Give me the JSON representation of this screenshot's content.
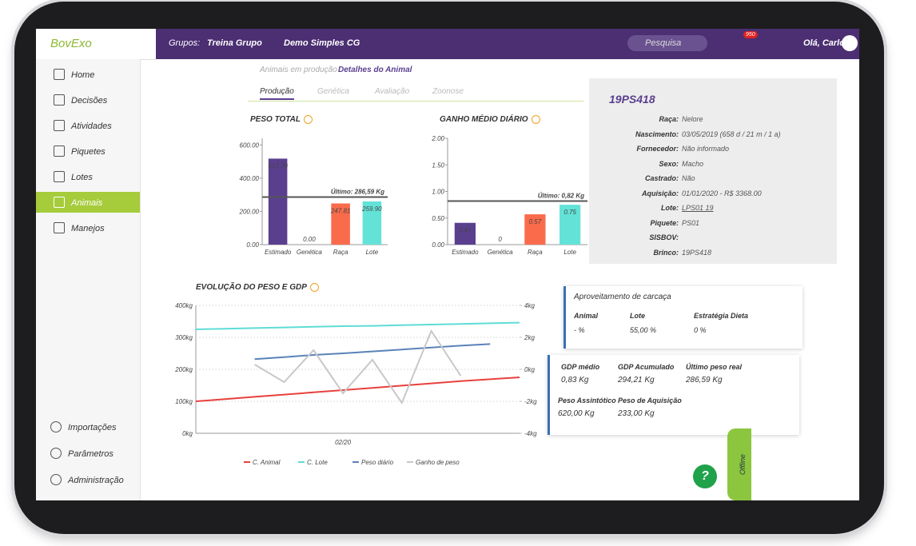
{
  "header": {
    "logo": "BovExo",
    "groups_label": "Grupos:",
    "group": "Treina Grupo",
    "farm": "Demo Simples CG",
    "search": "Pesquisa",
    "badge": "950",
    "greeting": "Olá, Carlos"
  },
  "sidebar": {
    "items": [
      "Home",
      "Decisões",
      "Atividades",
      "Piquetes",
      "Lotes",
      "Animais",
      "Manejos"
    ],
    "active": 5,
    "bottom": [
      "Importações",
      "Parâmetros",
      "Administração"
    ]
  },
  "breadcrumb": {
    "parent": "Animais em produção",
    "current": "Detalhes do Animal"
  },
  "tabs": {
    "items": [
      "Produção",
      "Genética",
      "Avaliação",
      "Zoonose"
    ],
    "active": 0
  },
  "chart_data": [
    {
      "type": "bar",
      "title": "PESO TOTAL",
      "categories": [
        "Estimado",
        "Genética",
        "Raça",
        "Lote"
      ],
      "values": [
        517.7,
        0,
        247.81,
        259.9
      ],
      "value_labels": [
        "517.70",
        "0.00",
        "247.81",
        "259.90"
      ],
      "colors": [
        "#5b3f8f",
        "#5b3f8f",
        "#fa6b4c",
        "#63e3d8"
      ],
      "ylim": [
        0,
        640
      ],
      "yticks": [
        {
          "value": 0,
          "label": "0.00"
        },
        {
          "value": 200,
          "label": "200.00"
        },
        {
          "value": 400,
          "label": "400.00"
        },
        {
          "value": 600,
          "label": "600.00"
        }
      ],
      "annotation": {
        "label": "Último: 286,59 Kg",
        "value": 286.59
      }
    },
    {
      "type": "bar",
      "title": "GANHO MÉDIO DIÁRIO",
      "categories": [
        "Estimado",
        "Genética",
        "Raça",
        "Lote"
      ],
      "values": [
        0.41,
        0,
        0.57,
        0.75
      ],
      "colors": [
        "#5b3f8f",
        "#5b3f8f",
        "#fa6b4c",
        "#63e3d8"
      ],
      "ylim": [
        0,
        2
      ],
      "yticks": [
        {
          "value": 0,
          "label": "0.00"
        },
        {
          "value": 0.5,
          "label": "0.50"
        },
        {
          "value": 1,
          "label": "1.00"
        },
        {
          "value": 1.5,
          "label": "1.50"
        },
        {
          "value": 2,
          "label": "2.00"
        }
      ],
      "annotation": {
        "label": "Último: 0,82 Kg",
        "value": 0.82
      }
    },
    {
      "type": "line",
      "title": "EVOLUÇÃO DO PESO E GDP",
      "categories": [
        null,
        null,
        null,
        null,
        null,
        "02/20",
        null,
        null,
        null,
        null,
        null,
        null
      ],
      "series": [
        {
          "name": "C. Animal",
          "color": "#e8413c",
          "values": [
            100,
            107,
            114,
            121,
            128,
            135,
            142,
            149,
            156,
            163,
            169,
            175
          ]
        },
        {
          "name": "C. Lote",
          "color": "#5fdcd6",
          "values": [
            325,
            327,
            329,
            331,
            333,
            335,
            336,
            338,
            340,
            342,
            344,
            346
          ]
        },
        {
          "name": "Peso diário",
          "color": "#5a82b8",
          "values": [
            null,
            null,
            232,
            238,
            245,
            250,
            256,
            262,
            268,
            274,
            279,
            null
          ]
        },
        {
          "name": "Ganho de peso",
          "color": "#c8c8c8",
          "axis": "y2",
          "values": [
            null,
            null,
            0.3,
            -0.8,
            1.2,
            -1.5,
            0.6,
            -2.1,
            2.4,
            -0.4,
            null,
            null
          ]
        }
      ],
      "ylim": [
        0,
        400
      ],
      "yticks": [
        {
          "value": 0,
          "label": "0kg"
        },
        {
          "value": 100,
          "label": "100kg"
        },
        {
          "value": 200,
          "label": "200kg"
        },
        {
          "value": 300,
          "label": "300kg"
        },
        {
          "value": 400,
          "label": "400kg"
        }
      ],
      "y2lim": [
        -4,
        4
      ],
      "y2ticks": [
        {
          "value": -4,
          "label": "-4kg"
        },
        {
          "value": -2,
          "label": "-2kg"
        },
        {
          "value": 0,
          "label": "0kg"
        },
        {
          "value": 2,
          "label": "2kg"
        },
        {
          "value": 4,
          "label": "4kg"
        }
      ]
    }
  ],
  "animal": {
    "id": "19PS418",
    "fields": [
      {
        "label": "Raça:",
        "value": "Nelore"
      },
      {
        "label": "Nascimento:",
        "value": "03/05/2019 (658 d / 21 m / 1 a)"
      },
      {
        "label": "Fornecedor:",
        "value": "Não informado"
      },
      {
        "label": "Sexo:",
        "value": "Macho"
      },
      {
        "label": "Castrado:",
        "value": "Não"
      },
      {
        "label": "Aquisição:",
        "value": "01/01/2020 - R$ 3368.00"
      },
      {
        "label": "Lote:",
        "value": "LPS01 19"
      },
      {
        "label": "Piquete:",
        "value": "PS01"
      },
      {
        "label": "SISBOV:"
      },
      {
        "label": "Brinco:",
        "value": "19PS418"
      }
    ]
  },
  "carcass": {
    "title": "Aproveitamento de carcaça",
    "items": [
      {
        "label": "Animal",
        "value": "- %"
      },
      {
        "label": "Lote",
        "value": "55,00 %"
      },
      {
        "label": "Estratégia Dieta",
        "value": "0 %"
      }
    ]
  },
  "gdp": {
    "items": [
      {
        "label": "GDP médio",
        "value": "0,83 Kg"
      },
      {
        "label": "GDP Acumulado",
        "value": "294,21 Kg"
      },
      {
        "label": "Último peso real",
        "value": "286,59 Kg"
      },
      {
        "label": "Peso Assintótico",
        "value": "620,00 Kg"
      },
      {
        "label": "Peso de Aquisição",
        "value": "233,00 Kg"
      }
    ]
  },
  "offline": "Offline",
  "help": "?"
}
